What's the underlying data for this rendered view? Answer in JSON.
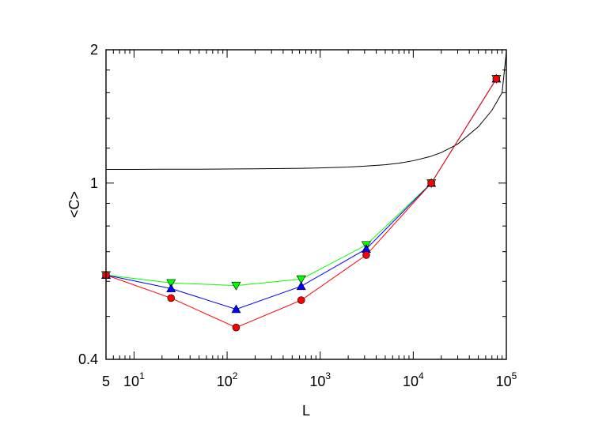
{
  "chart_data": {
    "type": "line",
    "title": "",
    "xlabel": "L",
    "ylabel": "<C>",
    "x_scale": "log",
    "y_scale": "log",
    "xlim": [
      5,
      100000
    ],
    "ylim": [
      0.4,
      2
    ],
    "x_ticks": [
      {
        "value": 5,
        "base": "5",
        "exp": ""
      },
      {
        "value": 10,
        "base": "10",
        "exp": "1"
      },
      {
        "value": 100,
        "base": "10",
        "exp": "2"
      },
      {
        "value": 1000,
        "base": "10",
        "exp": "3"
      },
      {
        "value": 10000,
        "base": "10",
        "exp": "4"
      },
      {
        "value": 100000,
        "base": "10",
        "exp": "5"
      }
    ],
    "y_ticks": [
      {
        "value": 0.4,
        "label": "0.4"
      },
      {
        "value": 1,
        "label": "1"
      },
      {
        "value": 2,
        "label": "2"
      }
    ],
    "grid": false,
    "legend": "none",
    "series": [
      {
        "marker": "triangle-down",
        "color": "#00ff00",
        "x": [
          5,
          25,
          125,
          625,
          3125,
          15625,
          78125
        ],
        "y": [
          0.62,
          0.595,
          0.587,
          0.607,
          0.725,
          1.0,
          1.72
        ]
      },
      {
        "marker": "triangle-up",
        "color": "#0000ff",
        "x": [
          5,
          25,
          125,
          625,
          3125,
          15625,
          78125
        ],
        "y": [
          0.62,
          0.578,
          0.519,
          0.585,
          0.71,
          1.0,
          1.72
        ]
      },
      {
        "marker": "circle",
        "color": "#ff0000",
        "x": [
          5,
          25,
          125,
          625,
          3125,
          15625,
          78125
        ],
        "y": [
          0.62,
          0.55,
          0.472,
          0.544,
          0.688,
          1.0,
          1.72
        ]
      }
    ],
    "curve": {
      "color": "#000000",
      "x": [
        5,
        10,
        20,
        50,
        100,
        200,
        500,
        1000,
        2000,
        3000,
        5000,
        7000,
        10000,
        15000,
        20000,
        30000,
        50000,
        70000,
        90000,
        100000
      ],
      "y": [
        1.074,
        1.074,
        1.075,
        1.075,
        1.076,
        1.077,
        1.079,
        1.082,
        1.087,
        1.092,
        1.1,
        1.109,
        1.123,
        1.147,
        1.172,
        1.225,
        1.34,
        1.46,
        1.6,
        1.98
      ]
    }
  }
}
